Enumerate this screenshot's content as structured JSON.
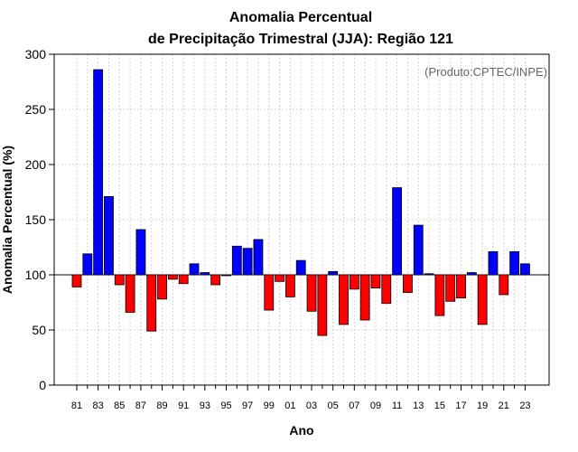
{
  "chart_data": {
    "type": "bar",
    "title_line1": "Anomalia Percentual",
    "title_line2": "de Precipitação Trimestral (JJA): Região 121",
    "xlabel": "Ano",
    "ylabel": "Anomalia Percentual (%)",
    "annotation": "(Produto:CPTEC/INPE)",
    "baseline": 100,
    "ylim": [
      0,
      300
    ],
    "yticks": [
      0,
      50,
      100,
      150,
      200,
      250,
      300
    ],
    "grid": true,
    "colors": {
      "above": "#0000ff",
      "below": "#ff0000",
      "edge": "#000000",
      "grid": "#cccccc"
    },
    "categories": [
      "81",
      "82",
      "83",
      "84",
      "85",
      "86",
      "87",
      "88",
      "89",
      "90",
      "91",
      "92",
      "93",
      "94",
      "95",
      "96",
      "97",
      "98",
      "99",
      "00",
      "01",
      "02",
      "03",
      "04",
      "05",
      "06",
      "07",
      "08",
      "09",
      "10",
      "11",
      "12",
      "13",
      "14",
      "15",
      "16",
      "17",
      "18",
      "19",
      "20",
      "21",
      "22",
      "23"
    ],
    "tick_labels": [
      "81",
      "83",
      "85",
      "87",
      "89",
      "91",
      "93",
      "95",
      "97",
      "99",
      "01",
      "03",
      "05",
      "07",
      "09",
      "11",
      "13",
      "15",
      "17",
      "19",
      "21",
      "23"
    ],
    "values": [
      89,
      119,
      286,
      171,
      91,
      66,
      141,
      49,
      78,
      96,
      92,
      110,
      102,
      91,
      100,
      126,
      124,
      132,
      68,
      94,
      80,
      113,
      67,
      45,
      103,
      55,
      87,
      59,
      88,
      74,
      179,
      84,
      145,
      101,
      63,
      76,
      79,
      102,
      55,
      121,
      82,
      121,
      110
    ]
  }
}
